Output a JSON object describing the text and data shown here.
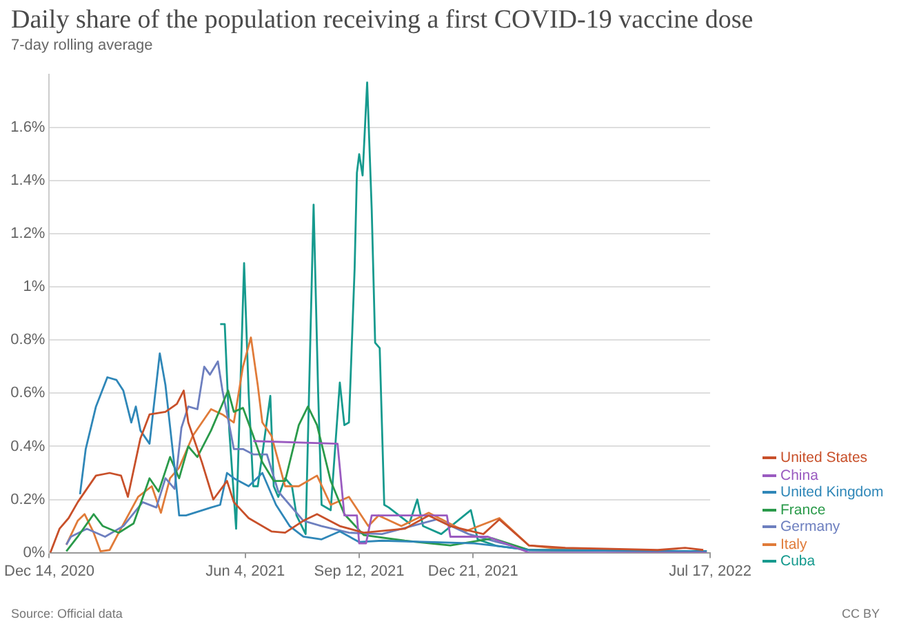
{
  "chart_data": {
    "type": "line",
    "title": "Daily share of the population receiving a first COVID-19 vaccine dose",
    "subtitle": "7-day rolling average",
    "annotations": [
      "Source: Official data",
      "CC BY"
    ],
    "xlim": [
      "2020-12-14",
      "2022-07-17"
    ],
    "xticks": [
      {
        "value": "2020-12-14",
        "label": "Dec 14, 2020"
      },
      {
        "value": "2021-06-04",
        "label": "Jun 4, 2021"
      },
      {
        "value": "2021-09-12",
        "label": "Sep 12, 2021"
      },
      {
        "value": "2021-12-21",
        "label": "Dec 21, 2021"
      },
      {
        "value": "2022-07-17",
        "label": "Jul 17, 2022"
      }
    ],
    "ylim": [
      0,
      1.8
    ],
    "yticks": [
      {
        "value": 0,
        "label": "0%"
      },
      {
        "value": 0.2,
        "label": "0.2%"
      },
      {
        "value": 0.4,
        "label": "0.4%"
      },
      {
        "value": 0.6,
        "label": "0.6%"
      },
      {
        "value": 0.8,
        "label": "0.8%"
      },
      {
        "value": 1,
        "label": "1%"
      },
      {
        "value": 1.2,
        "label": "1.2%"
      },
      {
        "value": 1.4,
        "label": "1.4%"
      },
      {
        "value": 1.6,
        "label": "1.6%"
      }
    ],
    "grid": "y",
    "legend": "right",
    "marker": "none",
    "line_style": "solid",
    "series": [
      {
        "name": "United States",
        "color": "#c8502a",
        "x": [
          "2020-12-15",
          "2020-12-23",
          "2020-12-31",
          "2021-01-08",
          "2021-01-24",
          "2021-02-05",
          "2021-02-15",
          "2021-02-21",
          "2021-03-04",
          "2021-03-12",
          "2021-03-26",
          "2021-04-05",
          "2021-04-11",
          "2021-04-15",
          "2021-04-27",
          "2021-05-07",
          "2021-05-19",
          "2021-05-25",
          "2021-06-07",
          "2021-06-27",
          "2021-07-09",
          "2021-07-25",
          "2021-08-06",
          "2021-08-26",
          "2021-09-16",
          "2021-10-22",
          "2021-11-12",
          "2021-12-01",
          "2021-12-30",
          "2022-01-13",
          "2022-02-08",
          "2022-03-12",
          "2022-06-01",
          "2022-06-25",
          "2022-07-11"
        ],
        "values": [
          0,
          0.09,
          0.13,
          0.19,
          0.29,
          0.3,
          0.29,
          0.21,
          0.43,
          0.52,
          0.53,
          0.56,
          0.61,
          0.49,
          0.34,
          0.2,
          0.27,
          0.19,
          0.13,
          0.08,
          0.075,
          0.12,
          0.145,
          0.1,
          0.075,
          0.09,
          0.14,
          0.1,
          0.07,
          0.125,
          0.027,
          0.018,
          0.01,
          0.018,
          0.01
        ]
      },
      {
        "name": "China",
        "color": "#9a5bc0",
        "x": [
          "2021-06-11",
          "2021-08-24",
          "2021-08-30",
          "2021-09-10",
          "2021-09-12",
          "2021-09-18",
          "2021-09-23",
          "2021-11-28",
          "2021-12-01",
          "2022-01-03",
          "2022-02-08",
          "2022-07-14"
        ],
        "values": [
          0.42,
          0.41,
          0.14,
          0.14,
          0.035,
          0.035,
          0.14,
          0.14,
          0.06,
          0.06,
          0,
          0
        ]
      },
      {
        "name": "United Kingdom",
        "color": "#2f87b8",
        "x": [
          "2021-01-10",
          "2021-01-15",
          "2021-01-24",
          "2021-02-03",
          "2021-02-11",
          "2021-02-17",
          "2021-02-24",
          "2021-02-28",
          "2021-03-04",
          "2021-03-12",
          "2021-03-21",
          "2021-03-26",
          "2021-04-03",
          "2021-04-07",
          "2021-04-13",
          "2021-05-05",
          "2021-05-13",
          "2021-05-19",
          "2021-05-25",
          "2021-06-07",
          "2021-06-19",
          "2021-07-01",
          "2021-07-13",
          "2021-07-25",
          "2021-08-10",
          "2021-08-26",
          "2021-09-12",
          "2021-10-02",
          "2021-12-22",
          "2022-01-11",
          "2022-02-08",
          "2022-07-14"
        ],
        "values": [
          0.22,
          0.39,
          0.55,
          0.66,
          0.65,
          0.61,
          0.49,
          0.55,
          0.46,
          0.41,
          0.75,
          0.63,
          0.32,
          0.14,
          0.14,
          0.17,
          0.18,
          0.3,
          0.28,
          0.25,
          0.3,
          0.18,
          0.1,
          0.06,
          0.05,
          0.08,
          0.04,
          0.045,
          0.035,
          0.025,
          0.01,
          0.005
        ]
      },
      {
        "name": "France",
        "color": "#2a9a4a",
        "x": [
          "2020-12-29",
          "2021-01-08",
          "2021-01-22",
          "2021-01-30",
          "2021-02-13",
          "2021-02-26",
          "2021-03-12",
          "2021-03-20",
          "2021-03-30",
          "2021-04-07",
          "2021-04-15",
          "2021-04-23",
          "2021-05-05",
          "2021-05-20",
          "2021-05-25",
          "2021-06-02",
          "2021-06-11",
          "2021-06-19",
          "2021-06-29",
          "2021-07-09",
          "2021-07-21",
          "2021-07-29",
          "2021-08-06",
          "2021-08-18",
          "2021-08-30",
          "2021-09-16",
          "2021-10-22",
          "2021-12-01",
          "2022-01-07",
          "2022-02-08",
          "2022-07-14"
        ],
        "values": [
          0.005,
          0.06,
          0.145,
          0.1,
          0.075,
          0.11,
          0.28,
          0.23,
          0.36,
          0.28,
          0.4,
          0.36,
          0.46,
          0.61,
          0.53,
          0.545,
          0.44,
          0.34,
          0.27,
          0.27,
          0.48,
          0.55,
          0.48,
          0.27,
          0.145,
          0.066,
          0.045,
          0.027,
          0.054,
          0.01,
          0.005
        ]
      },
      {
        "name": "Germany",
        "color": "#6d7fbf",
        "x": [
          "2020-12-29",
          "2021-01-02",
          "2021-01-16",
          "2021-02-01",
          "2021-02-17",
          "2021-03-06",
          "2021-03-18",
          "2021-03-26",
          "2021-04-03",
          "2021-04-09",
          "2021-04-15",
          "2021-04-23",
          "2021-04-29",
          "2021-05-04",
          "2021-05-11",
          "2021-05-15",
          "2021-05-21",
          "2021-05-25",
          "2021-06-02",
          "2021-06-11",
          "2021-06-23",
          "2021-07-03",
          "2021-07-13",
          "2021-07-25",
          "2021-08-10",
          "2021-09-03",
          "2021-10-02",
          "2021-11-19",
          "2021-12-17",
          "2022-01-11",
          "2022-02-08",
          "2022-07-14"
        ],
        "values": [
          0.03,
          0.06,
          0.09,
          0.06,
          0.1,
          0.19,
          0.17,
          0.28,
          0.24,
          0.47,
          0.55,
          0.54,
          0.7,
          0.67,
          0.72,
          0.61,
          0.48,
          0.39,
          0.39,
          0.37,
          0.37,
          0.23,
          0.18,
          0.12,
          0.1,
          0.075,
          0.07,
          0.125,
          0.07,
          0.04,
          0.01,
          0.005
        ]
      },
      {
        "name": "Italy",
        "color": "#e07b39",
        "x": [
          "2020-12-29",
          "2021-01-08",
          "2021-01-14",
          "2021-01-22",
          "2021-01-28",
          "2021-02-05",
          "2021-02-13",
          "2021-03-02",
          "2021-03-14",
          "2021-03-22",
          "2021-03-30",
          "2021-04-07",
          "2021-04-19",
          "2021-05-05",
          "2021-05-15",
          "2021-05-25",
          "2021-06-02",
          "2021-06-09",
          "2021-06-15",
          "2021-06-19",
          "2021-06-27",
          "2021-07-09",
          "2021-07-21",
          "2021-08-06",
          "2021-08-18",
          "2021-09-03",
          "2021-09-20",
          "2021-09-29",
          "2021-10-19",
          "2021-11-12",
          "2021-12-14",
          "2022-01-13",
          "2022-02-08",
          "2022-03-12",
          "2022-07-14"
        ],
        "values": [
          0.03,
          0.12,
          0.145,
          0.075,
          0.005,
          0.01,
          0.075,
          0.21,
          0.25,
          0.15,
          0.28,
          0.32,
          0.44,
          0.54,
          0.52,
          0.49,
          0.7,
          0.81,
          0.63,
          0.49,
          0.44,
          0.25,
          0.25,
          0.29,
          0.18,
          0.21,
          0.1,
          0.14,
          0.1,
          0.15,
          0.08,
          0.13,
          0.027,
          0.012,
          0.005
        ]
      },
      {
        "name": "Cuba",
        "color": "#169a8e",
        "x": [
          "2021-05-13",
          "2021-05-17",
          "2021-05-21",
          "2021-05-27",
          "2021-06-03",
          "2021-06-07",
          "2021-06-11",
          "2021-06-15",
          "2021-06-19",
          "2021-06-26",
          "2021-06-29",
          "2021-07-03",
          "2021-07-09",
          "2021-07-15",
          "2021-07-19",
          "2021-07-27",
          "2021-08-03",
          "2021-08-07",
          "2021-08-10",
          "2021-08-18",
          "2021-08-26",
          "2021-08-30",
          "2021-09-03",
          "2021-09-08",
          "2021-09-10",
          "2021-09-12",
          "2021-09-15",
          "2021-09-19",
          "2021-09-23",
          "2021-09-26",
          "2021-09-30",
          "2021-10-04",
          "2021-10-08",
          "2021-10-26",
          "2021-11-02",
          "2021-11-07",
          "2021-11-23",
          "2021-12-19",
          "2021-12-25",
          "2022-01-11",
          "2022-02-08",
          "2022-07-14"
        ],
        "values": [
          0.86,
          0.86,
          0.46,
          0.09,
          1.09,
          0.6,
          0.25,
          0.25,
          0.37,
          0.59,
          0.25,
          0.21,
          0.28,
          0.25,
          0.14,
          0.07,
          1.31,
          0.6,
          0.18,
          0.16,
          0.64,
          0.48,
          0.49,
          1.07,
          1.43,
          1.5,
          1.42,
          1.77,
          1.29,
          0.79,
          0.77,
          0.18,
          0.17,
          0.11,
          0.2,
          0.1,
          0.07,
          0.16,
          0.05,
          0.025,
          0.01,
          0.005
        ]
      }
    ]
  }
}
